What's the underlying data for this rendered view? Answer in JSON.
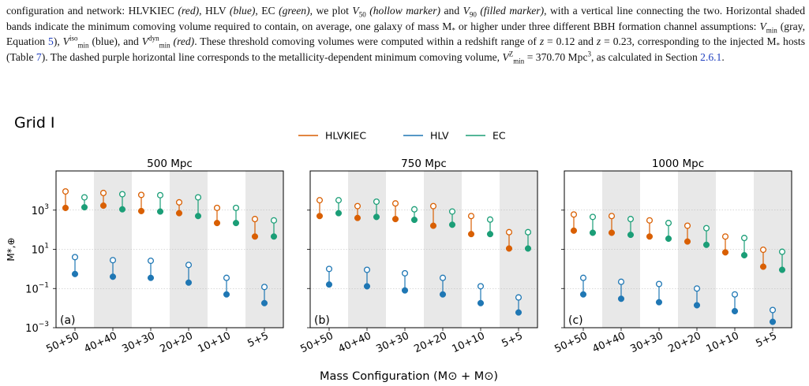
{
  "caption": {
    "l1a": "configuration and network: HLVKIEC ",
    "l1b": "(red)",
    "l1c": ", HLV ",
    "l1d": "(blue)",
    "l1e": ", EC ",
    "l1f": "(green)",
    "l1g": ", we plot ",
    "l1h": "V",
    "l1i": "50",
    "l1j": " ",
    "l1k": "(hollow marker)",
    "l1l": " and ",
    "l1m": "V",
    "l1n": "90",
    "l1o": " ",
    "l1p": "(filled marker)",
    "l1q": ", with a vertical line connecting the two. Horizontal shaded bands indicate the minimum comoving volume required to contain, on average, one galaxy of mass M",
    "l1r": "*",
    "l1s": " or higher under three different BBH formation channel assumptions: ",
    "l1t": "V",
    "l1u": "min",
    "l1v": " (gray, Equation ",
    "l1w": "5",
    "l1x": "), ",
    "l1y": "V",
    "l1z": "iso",
    "m1": "min",
    "m2": " (blue), and ",
    "m3": "V",
    "m4": "dyn",
    "m5": "min",
    "m6": " (red)",
    "m7": ". These threshold comoving volumes were computed within a redshift range of ",
    "m8": "z",
    "m9": " = 0.12 and ",
    "n1": "z",
    "n2": " = 0.23, corresponding to the injected M",
    "n3": "*",
    "n4": " hosts (Table ",
    "n5": "7",
    "n6": "). The dashed purple horizontal line corresponds to the metallicity-dependent minimum comoving volume, ",
    "n7": "V",
    "n8": "Z",
    "n9": "min",
    "o1": " = 370.70 Mpc",
    "o2": "3",
    "o3": ", as calculated in Section ",
    "o4": "2.6.1",
    "o5": "."
  },
  "chart_data": {
    "type": "scatter",
    "title": "Grid I",
    "xlabel": "Mass Configuration (M⊙ + M⊙)",
    "ylabel": "M*,⊕",
    "yscale": "log",
    "ylim": [
      0.001,
      100000
    ],
    "yticks": [
      {
        "value": 1000,
        "base": "10",
        "exp": "3"
      },
      {
        "value": 10,
        "base": "10",
        "exp": "1"
      },
      {
        "value": 0.1,
        "base": "10",
        "exp": "−1"
      },
      {
        "value": 0.001,
        "base": "10",
        "exp": "−3"
      }
    ],
    "grid": "horizontal dotted",
    "legend_placement": "top-center",
    "categories": [
      "50+50",
      "40+40",
      "30+30",
      "20+20",
      "10+10",
      "5+5"
    ],
    "series": [
      {
        "name": "HLVKIEC",
        "color": "#d95f02"
      },
      {
        "name": "HLV",
        "color": "#1f77b4"
      },
      {
        "name": "EC",
        "color": "#1b9e77"
      }
    ],
    "panels": [
      {
        "label": "(a)",
        "title": "500 Mpc",
        "HLVKIEC": {
          "v50": [
            9000,
            7500,
            6000,
            2500,
            1300,
            350
          ],
          "v90": [
            1300,
            1700,
            900,
            700,
            220,
            45
          ]
        },
        "HLV": {
          "v50": [
            4.0,
            2.8,
            2.6,
            1.6,
            0.35,
            0.12
          ],
          "v90": [
            0.55,
            0.4,
            0.35,
            0.2,
            0.05,
            0.018
          ]
        },
        "EC": {
          "v50": [
            4500,
            6500,
            5800,
            4500,
            1300,
            300
          ],
          "v90": [
            1400,
            1100,
            850,
            500,
            220,
            45
          ]
        }
      },
      {
        "label": "(b)",
        "title": "750 Mpc",
        "HLVKIEC": {
          "v50": [
            3200,
            1600,
            2200,
            1600,
            500,
            75
          ],
          "v90": [
            500,
            400,
            350,
            160,
            60,
            11
          ]
        },
        "HLV": {
          "v50": [
            1.0,
            0.9,
            0.6,
            0.35,
            0.13,
            0.035
          ],
          "v90": [
            0.16,
            0.13,
            0.08,
            0.05,
            0.018,
            0.006
          ]
        },
        "EC": {
          "v50": [
            3200,
            2700,
            1100,
            850,
            330,
            75
          ],
          "v90": [
            700,
            450,
            320,
            180,
            60,
            11
          ]
        }
      },
      {
        "label": "(c)",
        "title": "1000 Mpc",
        "HLVKIEC": {
          "v50": [
            600,
            500,
            300,
            160,
            45,
            9.5
          ],
          "v90": [
            90,
            70,
            45,
            25,
            7,
            1.3
          ]
        },
        "HLV": {
          "v50": [
            0.35,
            0.22,
            0.17,
            0.1,
            0.05,
            0.008
          ],
          "v90": [
            0.05,
            0.03,
            0.02,
            0.014,
            0.007,
            0.002
          ]
        },
        "EC": {
          "v50": [
            450,
            350,
            220,
            120,
            38,
            7.5
          ],
          "v90": [
            70,
            55,
            35,
            17,
            5,
            0.9
          ]
        }
      }
    ]
  }
}
